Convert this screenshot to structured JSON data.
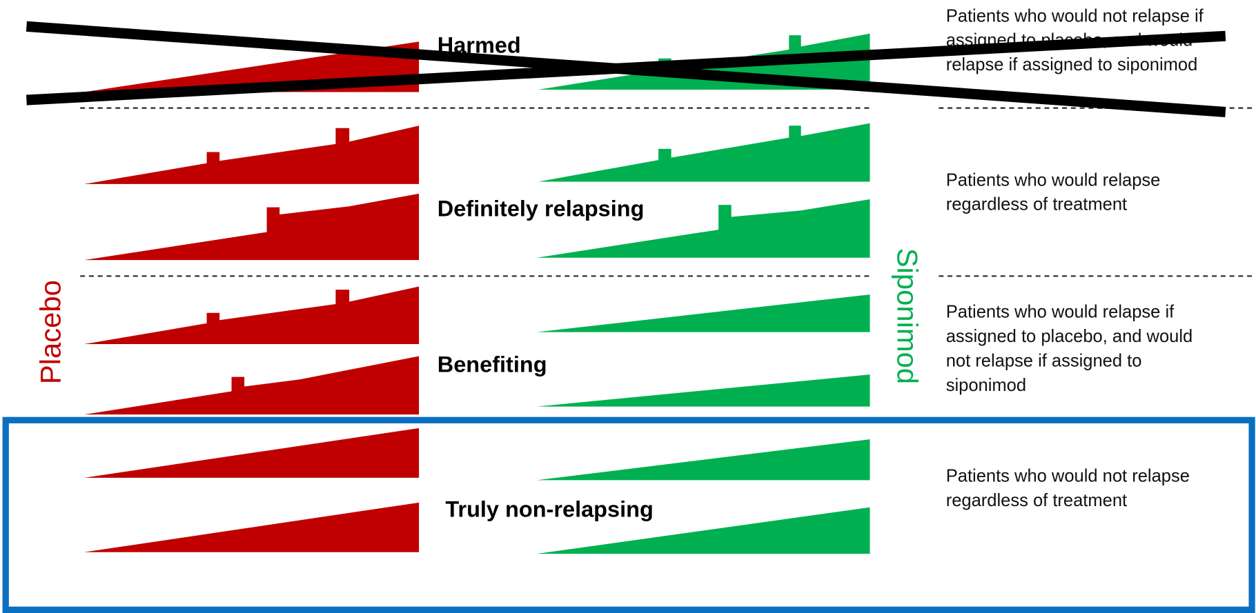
{
  "arms": {
    "placebo": "Placebo",
    "treatment": "Siponimod"
  },
  "groups": [
    {
      "label": "Harmed",
      "description": [
        "Patients who would not relapse if",
        "assigned to placebo, and would",
        "relapse if assigned to siponimod"
      ]
    },
    {
      "label": "Definitely relapsing",
      "description": [
        "Patients who would relapse",
        "regardless of treatment"
      ]
    },
    {
      "label": "Benefiting",
      "description": [
        "Patients who would relapse if",
        "assigned to placebo, and would",
        "not relapse if assigned to",
        "siponimod"
      ]
    },
    {
      "label": "Truly non-relapsing",
      "description": [
        "Patients who would not relapse",
        "regardless of treatment"
      ]
    }
  ]
}
